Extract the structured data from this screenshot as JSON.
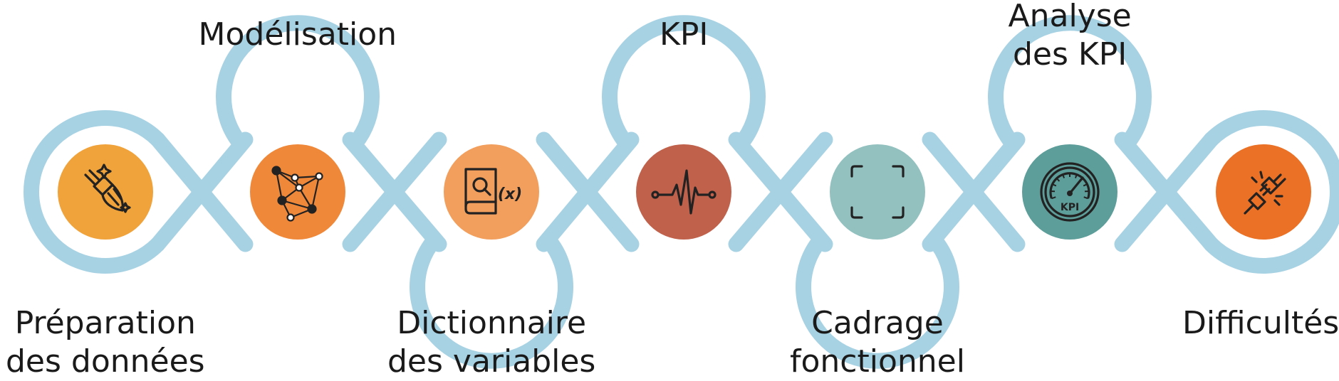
{
  "steps": [
    {
      "id": "s1",
      "label_lines": [
        "Préparation",
        "des données"
      ],
      "label_side": "bottom",
      "color": "#F0A23B",
      "icon": "broom-icon"
    },
    {
      "id": "s2",
      "label_lines": [
        "Modélisation"
      ],
      "label_side": "top",
      "color": "#F0883A",
      "icon": "network-graph-icon"
    },
    {
      "id": "s3",
      "label_lines": [
        "Dictionnaire",
        "des variables"
      ],
      "label_side": "bottom",
      "color": "#F29E5C",
      "icon": "book-search-variable-icon",
      "icon_text": "(x)"
    },
    {
      "id": "s4",
      "label_lines": [
        "KPI"
      ],
      "label_side": "top",
      "color": "#C0614C",
      "icon": "pulse-line-icon"
    },
    {
      "id": "s5",
      "label_lines": [
        "Cadrage",
        "fonctionnel"
      ],
      "label_side": "bottom",
      "color": "#93C1BF",
      "icon": "frame-corners-icon"
    },
    {
      "id": "s6",
      "label_lines": [
        "Analyse",
        "des KPI"
      ],
      "label_side": "top",
      "color": "#5E9E9A",
      "icon": "kpi-gauge-icon",
      "icon_text": "KPI"
    },
    {
      "id": "s7",
      "label_lines": [
        "Difficultés"
      ],
      "label_side": "bottom",
      "color": "#EA7125",
      "icon": "unplugged-icon"
    }
  ],
  "connector_color": "#A7D2E3"
}
